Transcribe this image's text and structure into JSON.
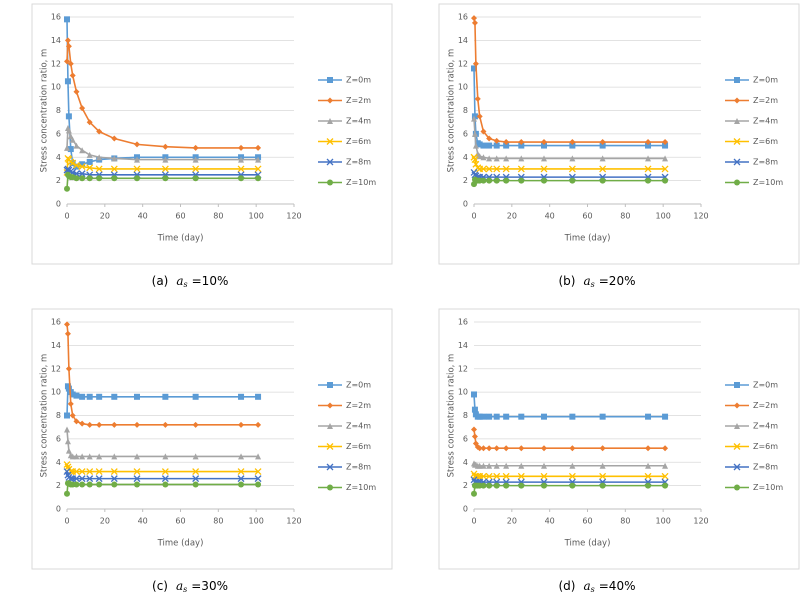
{
  "chart_data": [
    {
      "type": "line",
      "title": null,
      "caption": {
        "label": "(a)",
        "symbol": "a",
        "subscript": "s",
        "value": "=10%"
      },
      "x_label": "Time (day)",
      "y_label": "Stress concentration ratio, m",
      "x": [
        0,
        0.5,
        1,
        2,
        3,
        5,
        8,
        12,
        17,
        25,
        37,
        52,
        68,
        92,
        101
      ],
      "xlim": [
        0,
        120
      ],
      "xticks": [
        0,
        20,
        40,
        60,
        80,
        100,
        120
      ],
      "ylim": [
        0,
        16
      ],
      "yticks": [
        0,
        2,
        4,
        6,
        8,
        10,
        12,
        14,
        16
      ],
      "grid": true,
      "series": [
        {
          "name": "Z=0m",
          "color": "#5b9bd5",
          "marker": "square",
          "values": [
            15.8,
            10.5,
            7.5,
            4.7,
            3.5,
            3.2,
            3.4,
            3.6,
            3.8,
            3.9,
            4.0,
            4.0,
            4.0,
            4.0,
            4.0
          ]
        },
        {
          "name": "Z=2m",
          "color": "#ed7d31",
          "marker": "diamond",
          "values": [
            12.2,
            14.0,
            13.5,
            12.0,
            11.0,
            9.6,
            8.2,
            7.0,
            6.2,
            5.6,
            5.1,
            4.9,
            4.8,
            4.8,
            4.8
          ]
        },
        {
          "name": "Z=4m",
          "color": "#a5a5a5",
          "marker": "triangle",
          "values": [
            4.8,
            6.5,
            6.3,
            5.8,
            5.5,
            5.0,
            4.6,
            4.2,
            4.0,
            3.9,
            3.8,
            3.8,
            3.8,
            3.8,
            3.8
          ]
        },
        {
          "name": "Z=6m",
          "color": "#ffc000",
          "marker": "x",
          "values": [
            2.7,
            3.9,
            3.8,
            3.6,
            3.5,
            3.3,
            3.2,
            3.1,
            3.0,
            3.0,
            3.0,
            3.0,
            3.0,
            3.0,
            3.0
          ]
        },
        {
          "name": "Z=8m",
          "color": "#4472c4",
          "marker": "x",
          "values": [
            2.9,
            3.0,
            2.9,
            2.8,
            2.7,
            2.6,
            2.6,
            2.5,
            2.5,
            2.5,
            2.5,
            2.5,
            2.5,
            2.5,
            2.5
          ]
        },
        {
          "name": "Z=10m",
          "color": "#70ad47",
          "marker": "circle",
          "values": [
            1.3,
            2.5,
            2.4,
            2.3,
            2.3,
            2.2,
            2.2,
            2.2,
            2.2,
            2.2,
            2.2,
            2.2,
            2.2,
            2.2,
            2.2
          ]
        }
      ]
    },
    {
      "type": "line",
      "title": null,
      "caption": {
        "label": "(b)",
        "symbol": "a",
        "subscript": "s",
        "value": "=20%"
      },
      "x_label": "Time (day)",
      "y_label": "Stress concentration ratio, m",
      "x": [
        0,
        0.5,
        1,
        2,
        3,
        5,
        8,
        12,
        17,
        25,
        37,
        52,
        68,
        92,
        101
      ],
      "xlim": [
        0,
        120
      ],
      "xticks": [
        0,
        20,
        40,
        60,
        80,
        100,
        120
      ],
      "ylim": [
        0,
        16
      ],
      "yticks": [
        0,
        2,
        4,
        6,
        8,
        10,
        12,
        14,
        16
      ],
      "grid": true,
      "series": [
        {
          "name": "Z=0m",
          "color": "#5b9bd5",
          "marker": "square",
          "values": [
            11.6,
            7.5,
            6.0,
            5.2,
            5.1,
            5.0,
            5.0,
            5.0,
            5.0,
            5.0,
            5.0,
            5.0,
            5.0,
            5.0,
            5.0
          ]
        },
        {
          "name": "Z=2m",
          "color": "#ed7d31",
          "marker": "diamond",
          "values": [
            15.9,
            15.5,
            12.0,
            9.0,
            7.5,
            6.2,
            5.6,
            5.4,
            5.3,
            5.3,
            5.3,
            5.3,
            5.3,
            5.3,
            5.3
          ]
        },
        {
          "name": "Z=4m",
          "color": "#a5a5a5",
          "marker": "triangle",
          "values": [
            7.3,
            6.0,
            5.0,
            4.3,
            4.1,
            4.0,
            3.9,
            3.9,
            3.9,
            3.9,
            3.9,
            3.9,
            3.9,
            3.9,
            3.9
          ]
        },
        {
          "name": "Z=6m",
          "color": "#ffc000",
          "marker": "x",
          "values": [
            4.0,
            3.8,
            3.4,
            3.1,
            3.0,
            3.0,
            3.0,
            3.0,
            3.0,
            3.0,
            3.0,
            3.0,
            3.0,
            3.0,
            3.0
          ]
        },
        {
          "name": "Z=8m",
          "color": "#4472c4",
          "marker": "x",
          "values": [
            2.7,
            2.5,
            2.4,
            2.3,
            2.3,
            2.3,
            2.3,
            2.3,
            2.3,
            2.3,
            2.3,
            2.3,
            2.3,
            2.3,
            2.3
          ]
        },
        {
          "name": "Z=10m",
          "color": "#70ad47",
          "marker": "circle",
          "values": [
            1.7,
            2.1,
            2.0,
            2.0,
            2.0,
            2.0,
            2.0,
            2.0,
            2.0,
            2.0,
            2.0,
            2.0,
            2.0,
            2.0,
            2.0
          ]
        }
      ]
    },
    {
      "type": "line",
      "title": null,
      "caption": {
        "label": "(c)",
        "symbol": "a",
        "subscript": "s",
        "value": "=30%"
      },
      "x_label": "Time (day)",
      "y_label": "Stress concentration ratio, m",
      "x": [
        0,
        0.5,
        1,
        2,
        3,
        5,
        8,
        12,
        17,
        25,
        37,
        52,
        68,
        92,
        101
      ],
      "xlim": [
        0,
        120
      ],
      "xticks": [
        0,
        20,
        40,
        60,
        80,
        100,
        120
      ],
      "ylim": [
        0,
        16
      ],
      "yticks": [
        0,
        2,
        4,
        6,
        8,
        10,
        12,
        14,
        16
      ],
      "grid": true,
      "series": [
        {
          "name": "Z=0m",
          "color": "#5b9bd5",
          "marker": "square",
          "values": [
            8.0,
            10.5,
            10.3,
            10.0,
            9.8,
            9.7,
            9.6,
            9.6,
            9.6,
            9.6,
            9.6,
            9.6,
            9.6,
            9.6,
            9.6
          ]
        },
        {
          "name": "Z=2m",
          "color": "#ed7d31",
          "marker": "diamond",
          "values": [
            15.8,
            15.0,
            12.0,
            9.0,
            8.0,
            7.5,
            7.3,
            7.2,
            7.2,
            7.2,
            7.2,
            7.2,
            7.2,
            7.2,
            7.2
          ]
        },
        {
          "name": "Z=4m",
          "color": "#a5a5a5",
          "marker": "triangle",
          "values": [
            6.8,
            5.8,
            5.0,
            4.6,
            4.5,
            4.5,
            4.5,
            4.5,
            4.5,
            4.5,
            4.5,
            4.5,
            4.5,
            4.5,
            4.5
          ]
        },
        {
          "name": "Z=6m",
          "color": "#ffc000",
          "marker": "x",
          "values": [
            3.8,
            3.6,
            3.4,
            3.2,
            3.2,
            3.2,
            3.2,
            3.2,
            3.2,
            3.2,
            3.2,
            3.2,
            3.2,
            3.2,
            3.2
          ]
        },
        {
          "name": "Z=8m",
          "color": "#4472c4",
          "marker": "x",
          "values": [
            3.2,
            2.9,
            2.7,
            2.6,
            2.6,
            2.6,
            2.6,
            2.6,
            2.6,
            2.6,
            2.6,
            2.6,
            2.6,
            2.6,
            2.6
          ]
        },
        {
          "name": "Z=10m",
          "color": "#70ad47",
          "marker": "circle",
          "values": [
            1.3,
            2.2,
            2.2,
            2.1,
            2.1,
            2.1,
            2.1,
            2.1,
            2.1,
            2.1,
            2.1,
            2.1,
            2.1,
            2.1,
            2.1
          ]
        }
      ]
    },
    {
      "type": "line",
      "title": null,
      "caption": {
        "label": "(d)",
        "symbol": "a",
        "subscript": "s",
        "value": "=40%"
      },
      "x_label": "Time (day)",
      "y_label": "Stress concentration ratio, m",
      "x": [
        0,
        0.5,
        1,
        2,
        3,
        5,
        8,
        12,
        17,
        25,
        37,
        52,
        68,
        92,
        101
      ],
      "xlim": [
        0,
        120
      ],
      "xticks": [
        0,
        20,
        40,
        60,
        80,
        100,
        120
      ],
      "ylim": [
        0,
        16
      ],
      "yticks": [
        0,
        2,
        4,
        6,
        8,
        10,
        12,
        14,
        16
      ],
      "grid": true,
      "series": [
        {
          "name": "Z=0m",
          "color": "#5b9bd5",
          "marker": "square",
          "values": [
            9.8,
            8.5,
            8.1,
            7.9,
            7.9,
            7.9,
            7.9,
            7.9,
            7.9,
            7.9,
            7.9,
            7.9,
            7.9,
            7.9,
            7.9
          ]
        },
        {
          "name": "Z=2m",
          "color": "#ed7d31",
          "marker": "diamond",
          "values": [
            6.8,
            6.2,
            5.6,
            5.3,
            5.2,
            5.2,
            5.2,
            5.2,
            5.2,
            5.2,
            5.2,
            5.2,
            5.2,
            5.2,
            5.2
          ]
        },
        {
          "name": "Z=4m",
          "color": "#a5a5a5",
          "marker": "triangle",
          "values": [
            3.9,
            3.8,
            3.8,
            3.7,
            3.7,
            3.7,
            3.7,
            3.7,
            3.7,
            3.7,
            3.7,
            3.7,
            3.7,
            3.7,
            3.7
          ]
        },
        {
          "name": "Z=6m",
          "color": "#ffc000",
          "marker": "x",
          "values": [
            3.0,
            2.8,
            2.8,
            2.8,
            2.8,
            2.8,
            2.8,
            2.8,
            2.8,
            2.8,
            2.8,
            2.8,
            2.8,
            2.8,
            2.8
          ]
        },
        {
          "name": "Z=8m",
          "color": "#4472c4",
          "marker": "x",
          "values": [
            2.5,
            2.3,
            2.3,
            2.3,
            2.3,
            2.3,
            2.3,
            2.3,
            2.3,
            2.3,
            2.3,
            2.3,
            2.3,
            2.3,
            2.3
          ]
        },
        {
          "name": "Z=10m",
          "color": "#70ad47",
          "marker": "circle",
          "values": [
            1.3,
            2.0,
            2.0,
            2.0,
            2.0,
            2.0,
            2.0,
            2.0,
            2.0,
            2.0,
            2.0,
            2.0,
            2.0,
            2.0,
            2.0
          ]
        }
      ]
    }
  ]
}
